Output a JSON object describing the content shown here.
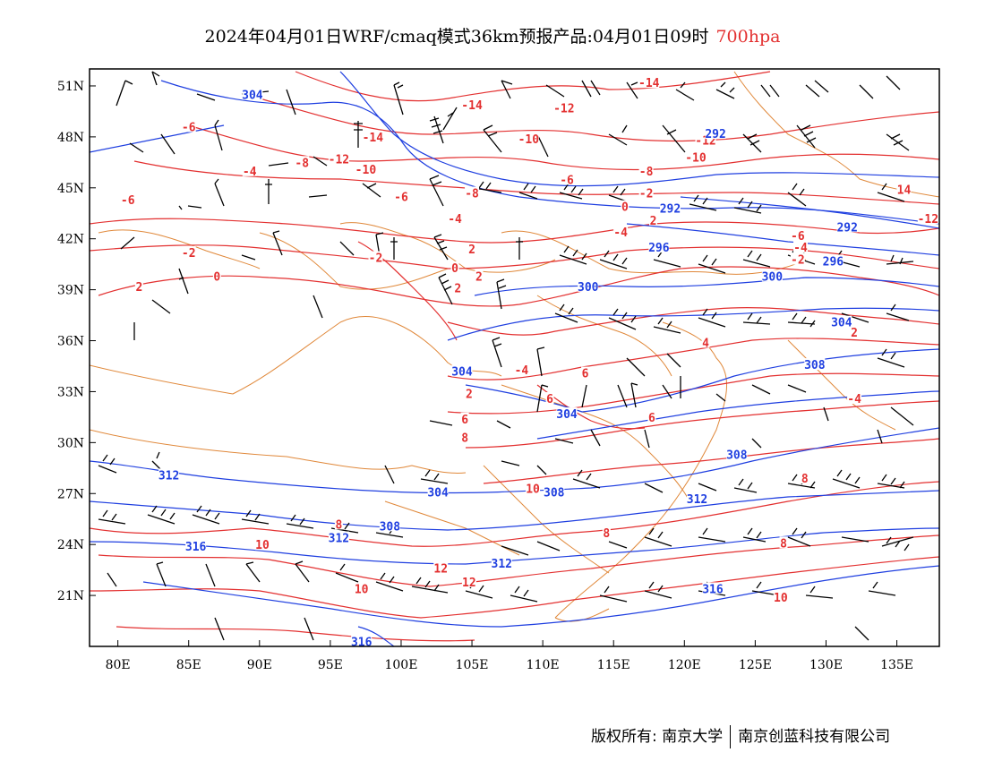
{
  "title": {
    "main": "2024年04月01日WRF/cmaq模式36km预报产品:04月01日09时",
    "level": "700hpa"
  },
  "axes": {
    "lat_labels": [
      "51N",
      "48N",
      "45N",
      "42N",
      "39N",
      "36N",
      "33N",
      "30N",
      "27N",
      "24N",
      "21N"
    ],
    "lat_values": [
      51,
      48,
      45,
      42,
      39,
      36,
      33,
      30,
      27,
      24,
      21
    ],
    "lon_labels": [
      "80E",
      "85E",
      "90E",
      "95E",
      "100E",
      "105E",
      "110E",
      "115E",
      "120E",
      "125E",
      "130E",
      "135E"
    ],
    "lon_values": [
      80,
      85,
      90,
      95,
      100,
      105,
      110,
      115,
      120,
      125,
      130,
      135
    ],
    "lon_range": [
      78,
      138
    ],
    "lat_range": [
      18,
      52
    ]
  },
  "colors": {
    "temperature": "#e33030",
    "height": "#1f3fe0",
    "border": "#e0883a",
    "wind": "#000000"
  },
  "temperature_labels": [
    {
      "text": "-14",
      "lon": 105,
      "lat": 49.9
    },
    {
      "text": "-14",
      "lon": 117.5,
      "lat": 51.2
    },
    {
      "text": "-12",
      "lon": 111.5,
      "lat": 49.7
    },
    {
      "text": "-14",
      "lon": 98.0,
      "lat": 48.0
    },
    {
      "text": "-10",
      "lon": 109,
      "lat": 47.9
    },
    {
      "text": "-12",
      "lon": 121.5,
      "lat": 47.8
    },
    {
      "text": "-6",
      "lon": 85,
      "lat": 48.6
    },
    {
      "text": "-8",
      "lon": 93,
      "lat": 46.5
    },
    {
      "text": "-12",
      "lon": 95.6,
      "lat": 46.7
    },
    {
      "text": "-10",
      "lon": 97.5,
      "lat": 46.1
    },
    {
      "text": "-10",
      "lon": 120.8,
      "lat": 46.8
    },
    {
      "text": "-4",
      "lon": 89.3,
      "lat": 46.0
    },
    {
      "text": "-8",
      "lon": 117.3,
      "lat": 46.0
    },
    {
      "text": "-6",
      "lon": 100,
      "lat": 44.5
    },
    {
      "text": "-6",
      "lon": 111.7,
      "lat": 45.5
    },
    {
      "text": "-8",
      "lon": 105,
      "lat": 44.7
    },
    {
      "text": "-2",
      "lon": 117.3,
      "lat": 44.7
    },
    {
      "text": "-6",
      "lon": 80.7,
      "lat": 44.3
    },
    {
      "text": "0",
      "lon": 115.8,
      "lat": 43.9
    },
    {
      "text": "-4",
      "lon": 103.8,
      "lat": 43.2
    },
    {
      "text": "2",
      "lon": 117.8,
      "lat": 43.1
    },
    {
      "text": "-4",
      "lon": 115.5,
      "lat": 42.4
    },
    {
      "text": "-6",
      "lon": 128,
      "lat": 42.2
    },
    {
      "text": "-4",
      "lon": 128.2,
      "lat": 41.5
    },
    {
      "text": "-2",
      "lon": 85,
      "lat": 41.2
    },
    {
      "text": "-2",
      "lon": 98.2,
      "lat": 40.9
    },
    {
      "text": "2",
      "lon": 105,
      "lat": 41.4
    },
    {
      "text": "0",
      "lon": 103.8,
      "lat": 40.3
    },
    {
      "text": "-2",
      "lon": 128,
      "lat": 40.8
    },
    {
      "text": "0",
      "lon": 87,
      "lat": 39.8
    },
    {
      "text": "2",
      "lon": 105.5,
      "lat": 39.8
    },
    {
      "text": "2",
      "lon": 81.5,
      "lat": 39.2
    },
    {
      "text": "2",
      "lon": 104,
      "lat": 39.1
    },
    {
      "text": "2",
      "lon": 132,
      "lat": 36.5
    },
    {
      "text": "4",
      "lon": 121.5,
      "lat": 35.9
    },
    {
      "text": "-4",
      "lon": 108.5,
      "lat": 34.3
    },
    {
      "text": "6",
      "lon": 113,
      "lat": 34.1
    },
    {
      "text": "2",
      "lon": 104.8,
      "lat": 32.9
    },
    {
      "text": "-4",
      "lon": 132,
      "lat": 32.6
    },
    {
      "text": "6",
      "lon": 110.5,
      "lat": 32.6
    },
    {
      "text": "6",
      "lon": 104.5,
      "lat": 31.4
    },
    {
      "text": "6",
      "lon": 117.7,
      "lat": 31.5
    },
    {
      "text": "8",
      "lon": 104.5,
      "lat": 30.3
    },
    {
      "text": "8",
      "lon": 128.5,
      "lat": 27.9
    },
    {
      "text": "10",
      "lon": 109.3,
      "lat": 27.3
    },
    {
      "text": "8",
      "lon": 95.6,
      "lat": 25.2
    },
    {
      "text": "8",
      "lon": 114.5,
      "lat": 24.7
    },
    {
      "text": "10",
      "lon": 90.2,
      "lat": 24.0
    },
    {
      "text": "8",
      "lon": 127,
      "lat": 24.1
    },
    {
      "text": "12",
      "lon": 102.8,
      "lat": 22.6
    },
    {
      "text": "12",
      "lon": 104.8,
      "lat": 21.8
    },
    {
      "text": "10",
      "lon": 97.2,
      "lat": 21.4
    },
    {
      "text": "10",
      "lon": 126.8,
      "lat": 20.9
    },
    {
      "text": "14",
      "lon": 135.5,
      "lat": 44.9
    },
    {
      "text": "-12",
      "lon": 137.2,
      "lat": 43.2
    }
  ],
  "height_labels": [
    {
      "text": "304",
      "lon": 89.5,
      "lat": 50.5
    },
    {
      "text": "292",
      "lon": 122.2,
      "lat": 48.2
    },
    {
      "text": "292",
      "lon": 119,
      "lat": 43.8
    },
    {
      "text": "292",
      "lon": 131.5,
      "lat": 42.7
    },
    {
      "text": "296",
      "lon": 118.2,
      "lat": 41.5
    },
    {
      "text": "296",
      "lon": 130.5,
      "lat": 40.7
    },
    {
      "text": "300",
      "lon": 113.2,
      "lat": 39.2
    },
    {
      "text": "300",
      "lon": 126.2,
      "lat": 39.8
    },
    {
      "text": "304",
      "lon": 131.1,
      "lat": 37.1
    },
    {
      "text": "308",
      "lon": 129.2,
      "lat": 34.6
    },
    {
      "text": "304",
      "lon": 104.3,
      "lat": 34.2
    },
    {
      "text": "304",
      "lon": 111.7,
      "lat": 31.7
    },
    {
      "text": "308",
      "lon": 123.7,
      "lat": 29.3
    },
    {
      "text": "312",
      "lon": 83.6,
      "lat": 28.1
    },
    {
      "text": "304",
      "lon": 102.6,
      "lat": 27.1
    },
    {
      "text": "308",
      "lon": 110.8,
      "lat": 27.1
    },
    {
      "text": "312",
      "lon": 120.9,
      "lat": 26.7
    },
    {
      "text": "308",
      "lon": 99.2,
      "lat": 25.1
    },
    {
      "text": "312",
      "lon": 95.6,
      "lat": 24.4
    },
    {
      "text": "316",
      "lon": 85.5,
      "lat": 23.9
    },
    {
      "text": "312",
      "lon": 107.1,
      "lat": 22.9
    },
    {
      "text": "316",
      "lon": 122,
      "lat": 21.4
    },
    {
      "text": "316",
      "lon": 97.2,
      "lat": 18.3
    }
  ],
  "footer": {
    "copyright": "版权所有: 南京大学",
    "company": "南京创蓝科技有限公司"
  }
}
